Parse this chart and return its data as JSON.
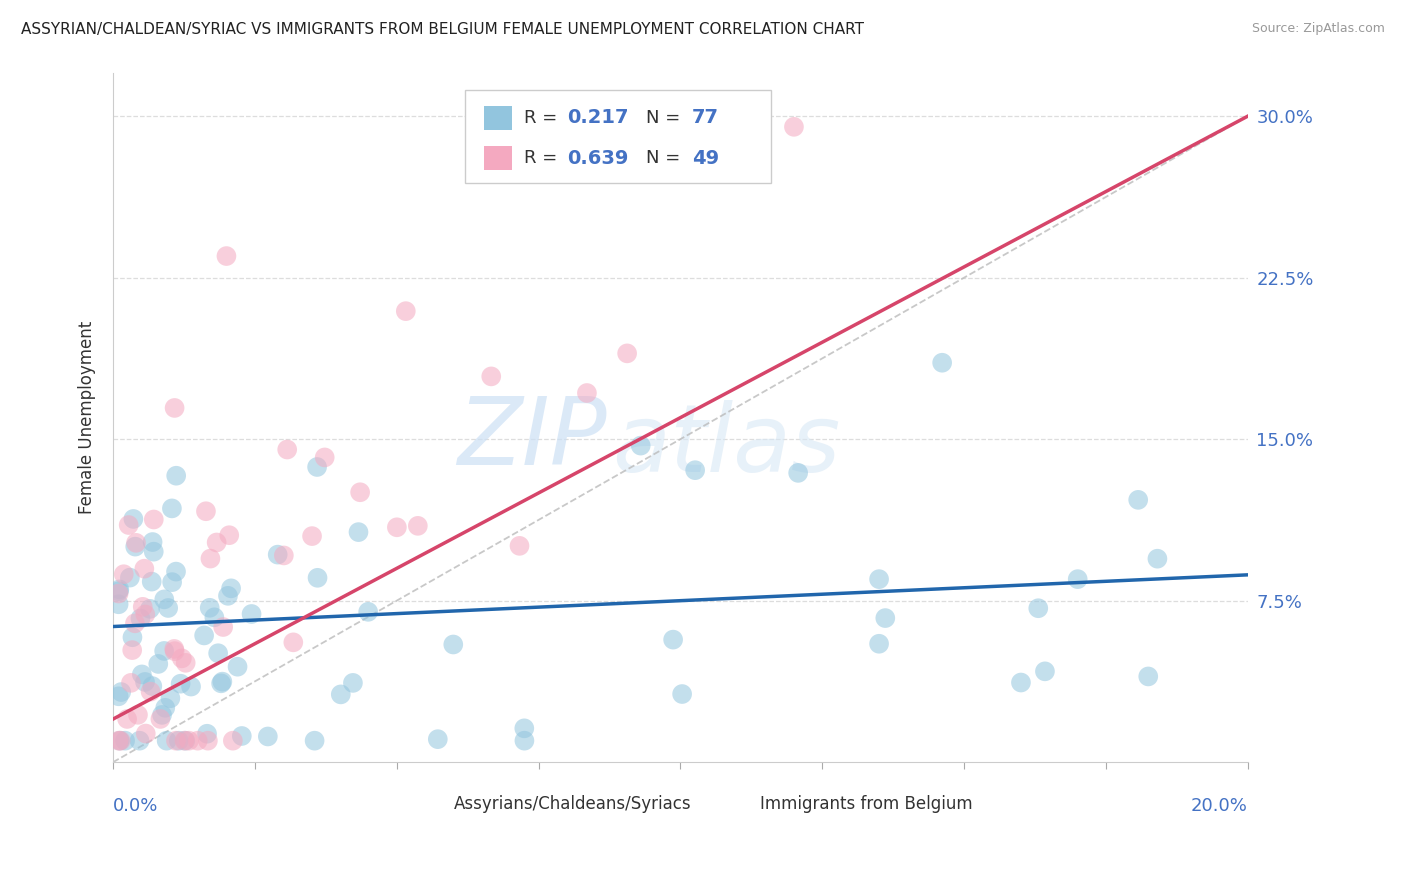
{
  "title": "ASSYRIAN/CHALDEAN/SYRIAC VS IMMIGRANTS FROM BELGIUM FEMALE UNEMPLOYMENT CORRELATION CHART",
  "source": "Source: ZipAtlas.com",
  "ylabel": "Female Unemployment",
  "legend_r1": "0.217",
  "legend_n1": "77",
  "legend_r2": "0.639",
  "legend_n2": "49",
  "blue_color": "#92c5de",
  "pink_color": "#f4a9c0",
  "trendline_blue": "#2166ac",
  "trendline_pink": "#d6456a",
  "xmin": 0.0,
  "xmax": 0.2,
  "ymin": 0.0,
  "ymax": 0.32,
  "watermark_zip": "ZIP",
  "watermark_atlas": "atlas",
  "ytick_vals": [
    0.075,
    0.15,
    0.225,
    0.3
  ],
  "ytick_labels": [
    "7.5%",
    "15.0%",
    "22.5%",
    "30.0%"
  ],
  "grid_color": "#dddddd",
  "ref_line_color": "#bbbbbb"
}
